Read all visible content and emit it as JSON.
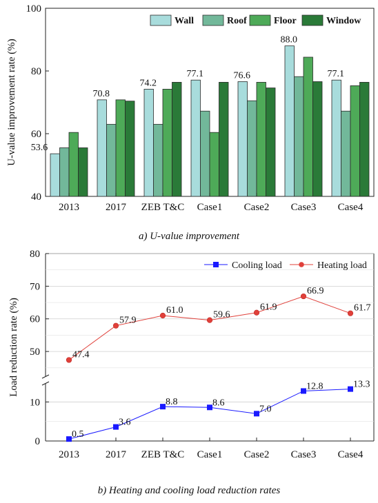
{
  "chart_data": [
    {
      "type": "bar",
      "caption": "a)  U-value  improvement",
      "ylabel": "U-value improvement rate (%)",
      "ylim": [
        40,
        100
      ],
      "yticks": [
        "40",
        "60",
        "80",
        "100"
      ],
      "categories": [
        "2013",
        "2017",
        "ZEB T&C",
        "Case1",
        "Case2",
        "Case3",
        "Case4"
      ],
      "legend_position": "top-right",
      "series": [
        {
          "name": "Wall",
          "color": "#a8dcdc",
          "values": [
            53.6,
            70.8,
            74.2,
            77.1,
            76.6,
            88.0,
            77.1
          ]
        },
        {
          "name": "Roof",
          "color": "#72b89a",
          "values": [
            55.5,
            63.0,
            63.0,
            67.2,
            70.5,
            78.2,
            67.2
          ]
        },
        {
          "name": "Floor",
          "color": "#4eaa58",
          "values": [
            60.4,
            70.8,
            74.2,
            60.4,
            76.4,
            84.4,
            75.3
          ]
        },
        {
          "name": "Window",
          "color": "#2a7a38",
          "values": [
            55.5,
            70.4,
            76.4,
            76.4,
            74.6,
            76.6,
            76.4
          ]
        }
      ],
      "data_labels": [
        "53.6",
        "70.8",
        "74.2",
        "77.1",
        "76.6",
        "88.0",
        "77.1"
      ]
    },
    {
      "type": "line",
      "caption": "b)  Heating  and  cooling  load  reduction  rates",
      "ylabel": "Load reduction rate (%)",
      "yticks_lower": [
        "0",
        "10"
      ],
      "yticks_upper": [
        "50",
        "60",
        "70",
        "80"
      ],
      "lower_range": [
        0,
        15
      ],
      "upper_range": [
        42,
        80
      ],
      "categories": [
        "2013",
        "2017",
        "ZEB T&C",
        "Case1",
        "Case2",
        "Case3",
        "Case4"
      ],
      "legend_position": "top-right",
      "series": [
        {
          "name": "Cooling load",
          "color": "#1a1aff",
          "marker": "square",
          "values": [
            0.5,
            3.6,
            8.8,
            8.6,
            7.0,
            12.8,
            13.3
          ],
          "labels": [
            "0.5",
            "3.6",
            "8.8",
            "8.6",
            "7.0",
            "12.8",
            "13.3"
          ]
        },
        {
          "name": "Heating load",
          "color": "#e0403a",
          "marker": "circle",
          "values": [
            47.4,
            57.9,
            61.0,
            59.6,
            61.9,
            66.9,
            61.7
          ],
          "labels": [
            "47.4",
            "57.9",
            "61.0",
            "59.6",
            "61.9",
            "66.9",
            "61.7"
          ]
        }
      ]
    }
  ]
}
